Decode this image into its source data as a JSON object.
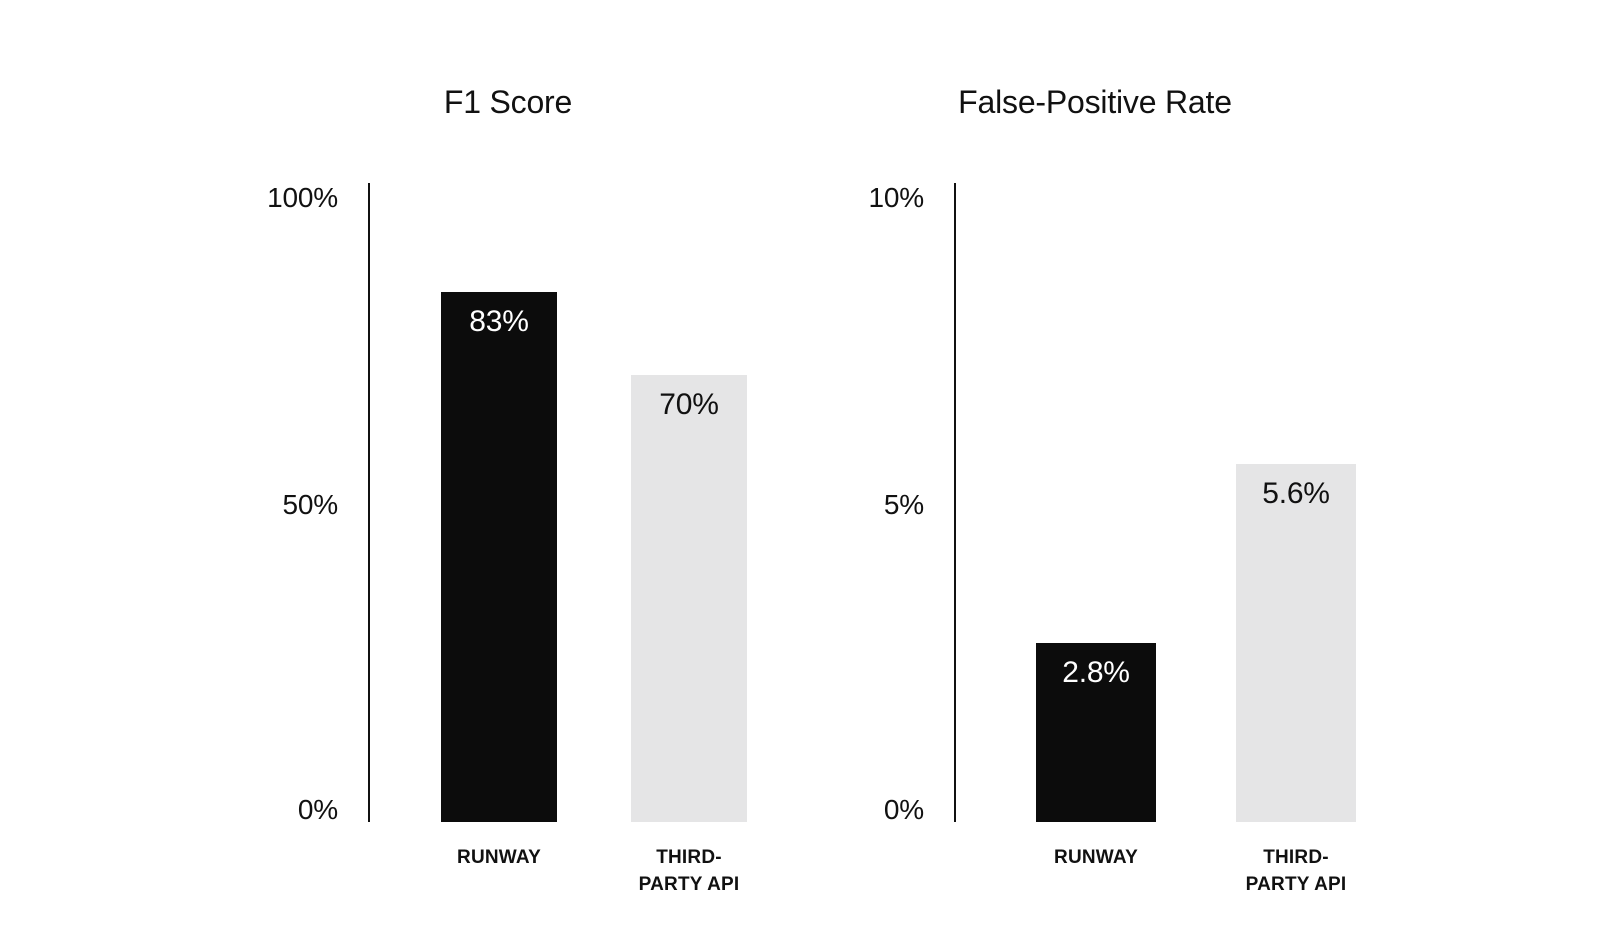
{
  "page": {
    "background_color": "#ffffff",
    "text_color": "#111111"
  },
  "chart_data": [
    {
      "type": "bar",
      "title": "F1 Score",
      "categories": [
        "RUNWAY",
        "THIRD-PARTY API"
      ],
      "values": [
        83,
        70
      ],
      "value_labels": [
        "83%",
        "70%"
      ],
      "yticks": [
        "100%",
        "50%",
        "0%"
      ],
      "ylim": [
        0,
        100
      ],
      "xlabel": "",
      "ylabel": "",
      "grid": false,
      "legend": false,
      "bar_colors": [
        "#0c0c0c",
        "#e5e5e6"
      ],
      "value_label_colors": [
        "#ffffff",
        "#111111"
      ],
      "axis_color": "#111111"
    },
    {
      "type": "bar",
      "title": "False-Positive Rate",
      "categories": [
        "RUNWAY",
        "THIRD-PARTY API"
      ],
      "values": [
        2.8,
        5.6
      ],
      "value_labels": [
        "2.8%",
        "5.6%"
      ],
      "yticks": [
        "10%",
        "5%",
        "0%"
      ],
      "ylim": [
        0,
        10
      ],
      "xlabel": "",
      "ylabel": "",
      "grid": false,
      "legend": false,
      "bar_colors": [
        "#0c0c0c",
        "#e5e5e6"
      ],
      "value_label_colors": [
        "#ffffff",
        "#111111"
      ],
      "axis_color": "#111111"
    }
  ]
}
